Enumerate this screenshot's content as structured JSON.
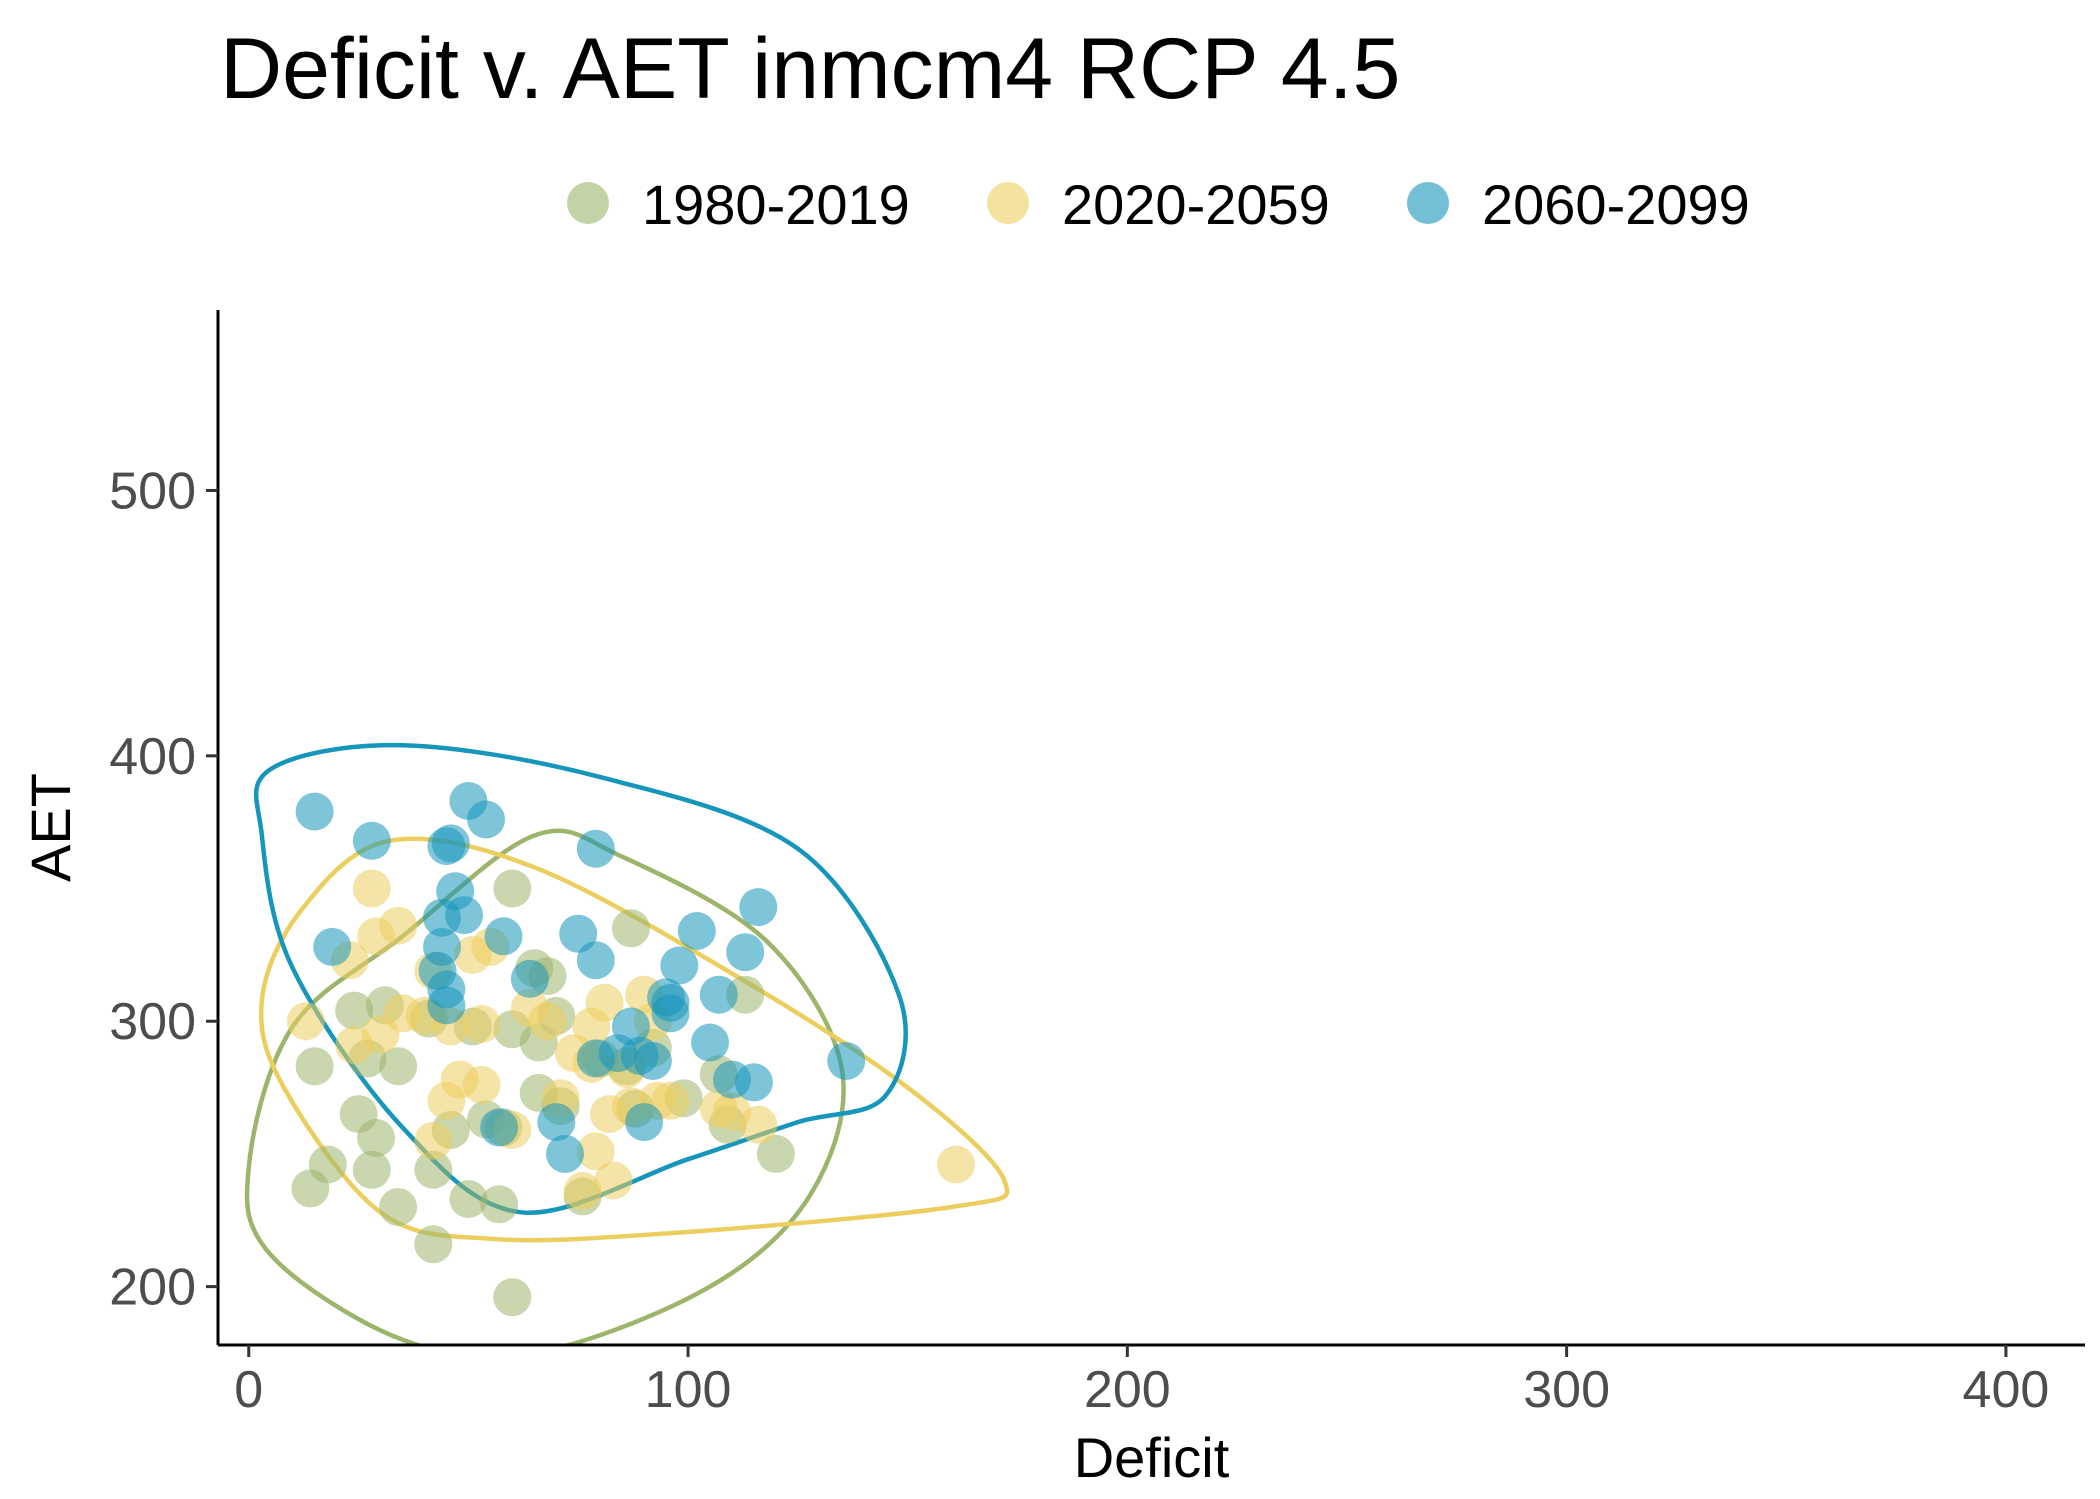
{
  "chart_data": {
    "type": "scatter",
    "title": "Deficit v. AET inmcm4 RCP 4.5",
    "xlabel": "Deficit",
    "ylabel": "AET",
    "xlim": [
      -7,
      418
    ],
    "ylim": [
      178,
      568
    ],
    "x_ticks": [
      0,
      100,
      200,
      300,
      400
    ],
    "y_ticks": [
      200,
      300,
      400,
      500
    ],
    "x_tick_labels": [
      "0",
      "100",
      "200",
      "300",
      "400"
    ],
    "y_tick_labels": [
      "200",
      "300",
      "400",
      "500"
    ],
    "grid": false,
    "legend_position": "top",
    "series": [
      {
        "name": "1980-2019",
        "color": "#9cb56b",
        "points": [
          [
            60,
            196
          ],
          [
            42,
            216
          ],
          [
            14,
            237
          ],
          [
            18,
            246
          ],
          [
            34,
            230
          ],
          [
            50,
            233
          ],
          [
            57,
            231
          ],
          [
            28,
            244
          ],
          [
            25,
            265
          ],
          [
            29,
            256
          ],
          [
            42,
            244
          ],
          [
            46,
            259
          ],
          [
            54,
            263
          ],
          [
            58,
            260
          ],
          [
            76,
            234
          ],
          [
            120,
            250
          ],
          [
            109,
            261
          ],
          [
            99,
            271
          ],
          [
            88,
            267
          ],
          [
            66,
            273
          ],
          [
            71,
            268
          ],
          [
            15,
            283
          ],
          [
            27,
            286
          ],
          [
            34,
            283
          ],
          [
            24,
            304
          ],
          [
            31,
            306
          ],
          [
            41,
            301
          ],
          [
            51,
            298
          ],
          [
            60,
            297
          ],
          [
            66,
            292
          ],
          [
            70,
            302
          ],
          [
            65,
            320
          ],
          [
            68,
            317
          ],
          [
            60,
            350
          ],
          [
            87,
            335
          ],
          [
            113,
            310
          ],
          [
            80,
            286
          ],
          [
            86,
            283
          ],
          [
            92,
            290
          ],
          [
            107,
            280
          ]
        ]
      },
      {
        "name": "2020-2059",
        "color": "#ecce5f",
        "points": [
          [
            161,
            246
          ],
          [
            76,
            236
          ],
          [
            83,
            240
          ],
          [
            79,
            251
          ],
          [
            42,
            255
          ],
          [
            60,
            259
          ],
          [
            45,
            270
          ],
          [
            71,
            271
          ],
          [
            53,
            276
          ],
          [
            48,
            278
          ],
          [
            82,
            265
          ],
          [
            87,
            268
          ],
          [
            93,
            270
          ],
          [
            96,
            270
          ],
          [
            107,
            267
          ],
          [
            110,
            266
          ],
          [
            116,
            261
          ],
          [
            13,
            300
          ],
          [
            24,
            291
          ],
          [
            30,
            295
          ],
          [
            35,
            303
          ],
          [
            40,
            302
          ],
          [
            46,
            298
          ],
          [
            53,
            299
          ],
          [
            64,
            305
          ],
          [
            68,
            300
          ],
          [
            78,
            298
          ],
          [
            81,
            307
          ],
          [
            90,
            310
          ],
          [
            92,
            300
          ],
          [
            86,
            282
          ],
          [
            78,
            284
          ],
          [
            23,
            323
          ],
          [
            29,
            332
          ],
          [
            34,
            336
          ],
          [
            28,
            350
          ],
          [
            42,
            319
          ],
          [
            51,
            325
          ],
          [
            55,
            328
          ],
          [
            74,
            288
          ]
        ]
      },
      {
        "name": "2060-2099",
        "color": "#1696bb",
        "points": [
          [
            15,
            379
          ],
          [
            28,
            368
          ],
          [
            45,
            366
          ],
          [
            46,
            367
          ],
          [
            50,
            383
          ],
          [
            54,
            376
          ],
          [
            79,
            365
          ],
          [
            19,
            328
          ],
          [
            44,
            339
          ],
          [
            47,
            349
          ],
          [
            49,
            340
          ],
          [
            44,
            328
          ],
          [
            43,
            319
          ],
          [
            45,
            312
          ],
          [
            45,
            306
          ],
          [
            58,
            332
          ],
          [
            64,
            316
          ],
          [
            75,
            333
          ],
          [
            79,
            323
          ],
          [
            102,
            334
          ],
          [
            98,
            321
          ],
          [
            113,
            326
          ],
          [
            116,
            343
          ],
          [
            95,
            309
          ],
          [
            96,
            303
          ],
          [
            107,
            310
          ],
          [
            105,
            292
          ],
          [
            87,
            298
          ],
          [
            89,
            287
          ],
          [
            84,
            288
          ],
          [
            92,
            285
          ],
          [
            79,
            286
          ],
          [
            110,
            278
          ],
          [
            115,
            277
          ],
          [
            136,
            285
          ],
          [
            90,
            262
          ],
          [
            57,
            260
          ],
          [
            70,
            262
          ],
          [
            72,
            250
          ],
          [
            96,
            307
          ]
        ]
      }
    ],
    "ellipses": [
      {
        "name": "1980-2019",
        "color": "#9cb56b",
        "path": [
          [
            0,
            245
          ],
          [
            10,
            298
          ],
          [
            35,
            332
          ],
          [
            65,
            370
          ],
          [
            85,
            362
          ],
          [
            118,
            330
          ],
          [
            135,
            282
          ],
          [
            128,
            235
          ],
          [
            105,
            200
          ],
          [
            65,
            175
          ],
          [
            35,
            180
          ],
          [
            5,
            212
          ]
        ]
      },
      {
        "name": "2020-2059",
        "color": "#ecce5f",
        "path": [
          [
            3,
            308
          ],
          [
            12,
            342
          ],
          [
            32,
            368
          ],
          [
            65,
            358
          ],
          [
            110,
            318
          ],
          [
            150,
            275
          ],
          [
            172,
            240
          ],
          [
            160,
            230
          ],
          [
            95,
            220
          ],
          [
            55,
            218
          ],
          [
            30,
            228
          ],
          [
            8,
            275
          ]
        ]
      },
      {
        "name": "2060-2099",
        "color": "#1696bb",
        "path": [
          [
            5,
            395
          ],
          [
            35,
            404
          ],
          [
            80,
            392
          ],
          [
            125,
            365
          ],
          [
            148,
            310
          ],
          [
            145,
            272
          ],
          [
            125,
            262
          ],
          [
            100,
            248
          ],
          [
            62,
            228
          ],
          [
            35,
            260
          ],
          [
            10,
            320
          ],
          [
            3,
            370
          ]
        ]
      }
    ]
  }
}
